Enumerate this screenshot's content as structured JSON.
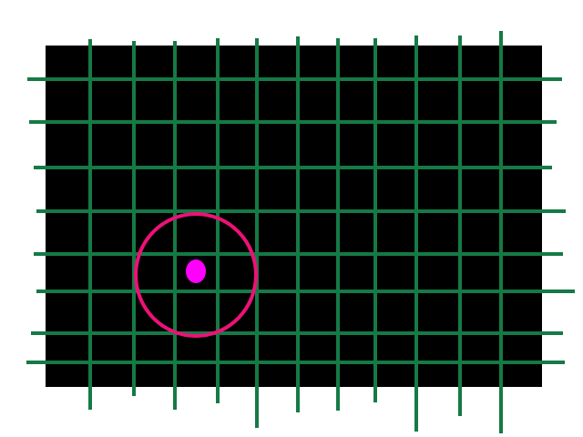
{
  "colors": {
    "page_background": "#ffffff",
    "board": "#000000",
    "grid_line": "#157a45",
    "cursor_ring": "#ee1177",
    "target_dot": "#ff00ff"
  },
  "board": {
    "vertical_line_count": 11,
    "horizontal_line_count": 8
  }
}
